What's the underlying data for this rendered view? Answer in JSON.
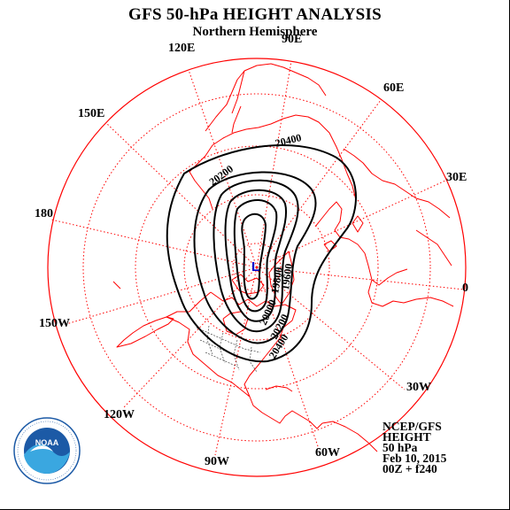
{
  "title": "GFS 50-hPa HEIGHT ANALYSIS",
  "subtitle": "Northern Hemisphere",
  "longitude_labels": {
    "e90": "90E",
    "e60": "60E",
    "e30": "30E",
    "zero": "0",
    "w30": "30W",
    "w60": "60W",
    "w90": "90W",
    "w120": "120W",
    "w150": "150W",
    "d180": "180",
    "e150": "150E",
    "e120": "120E"
  },
  "contour_labels": {
    "c20400_top": "20400",
    "c20200_left": "20200",
    "c20400_bottom": "20400",
    "c20200_bottom": "20200",
    "c20000_bottom": "20000",
    "c19800_center": "19800",
    "c19600_center": "19600"
  },
  "low_marker": "L",
  "info": {
    "source": "NCEP/GFS",
    "variable": "HEIGHT",
    "level": "50 hPa",
    "date": "Feb 10, 2015",
    "run": "00Z + f240"
  },
  "logo_text": "NOAA",
  "colors": {
    "coastline": "#ff0000",
    "graticule": "#ff0000",
    "contour": "#000000",
    "low_marker": "#0000cc",
    "logo_blue": "#1c5aa6",
    "logo_light": "#3aa7e0"
  }
}
